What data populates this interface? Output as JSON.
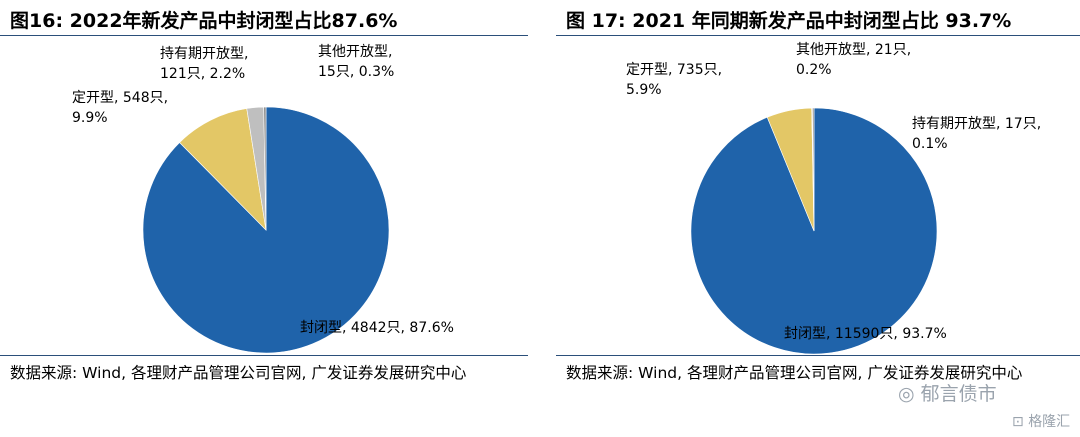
{
  "charts": [
    {
      "title": "图16:  2022年新发产品中封闭型占比87.6%",
      "source": "数据来源: Wind, 各理财产品管理公司官网, 广发证券发展研究中心",
      "labels": [
        [
          "封闭型, 4842只, 87.6%"
        ],
        [
          "定开型, 548只,",
          "9.9%"
        ],
        [
          "持有期开放型,",
          "121只, 2.2%"
        ],
        [
          "其他开放型,",
          "15只, 0.3%"
        ]
      ]
    },
    {
      "title": "图 17:  2021 年同期新发产品中封闭型占比 93.7%",
      "source": "数据来源: Wind, 各理财产品管理公司官网, 广发证券发展研究中心",
      "labels": [
        [
          "封闭型, 11590只, 93.7%"
        ],
        [
          "定开型, 735只,",
          "5.9%"
        ],
        [
          "持有期开放型, 17只,",
          "0.1%"
        ],
        [
          "其他开放型, 21只,",
          "0.2%"
        ]
      ]
    }
  ],
  "chart_data": [
    {
      "type": "pie",
      "title": "图16:  2022年新发产品中封闭型占比87.6%",
      "categories": [
        "封闭型",
        "定开型",
        "持有期开放型",
        "其他开放型"
      ],
      "counts": [
        4842,
        548,
        121,
        15
      ],
      "values": [
        87.6,
        9.9,
        2.2,
        0.3
      ],
      "colors": [
        "#1f63aa",
        "#e3c766",
        "#bfbfbf",
        "#8f8f8f"
      ]
    },
    {
      "type": "pie",
      "title": "图 17:  2021 年同期新发产品中封闭型占比 93.7%",
      "categories": [
        "封闭型",
        "定开型",
        "持有期开放型",
        "其他开放型"
      ],
      "counts": [
        11590,
        735,
        17,
        21
      ],
      "values": [
        93.7,
        5.9,
        0.1,
        0.2
      ],
      "colors": [
        "#1f63aa",
        "#e3c766",
        "#bfbfbf",
        "#8f8f8f"
      ]
    }
  ],
  "watermark": {
    "wechat_name": "郁言债市",
    "brand": "格隆汇"
  }
}
